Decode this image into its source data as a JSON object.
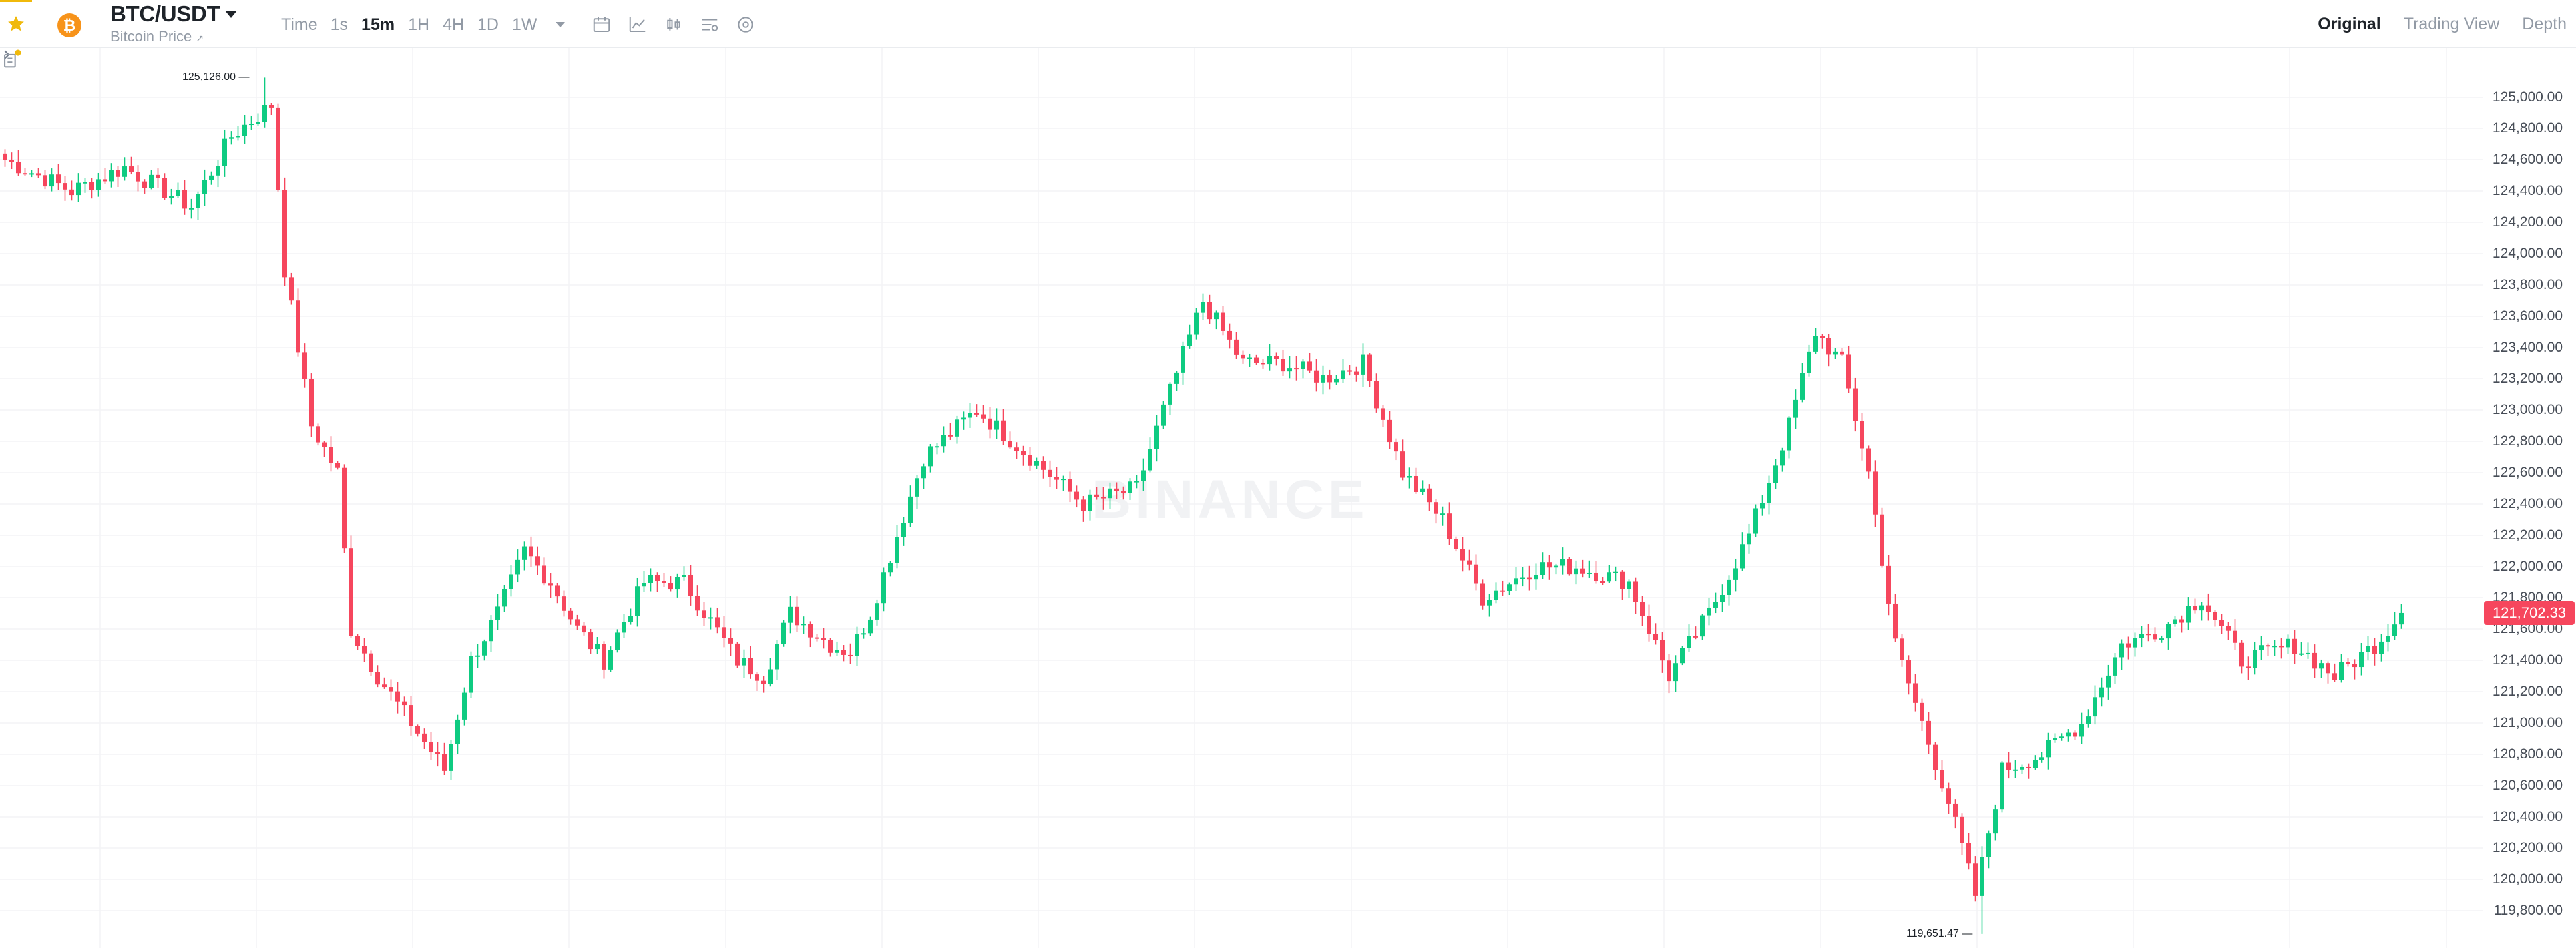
{
  "header": {
    "symbol": "BTC/USDT",
    "subtitle": "Bitcoin Price",
    "subtitle_icon": "external-link-icon",
    "coin_glyph": "₿",
    "favorite_icon": "star-icon",
    "intervals": [
      "Time",
      "1s",
      "15m",
      "1H",
      "4H",
      "1D",
      "1W"
    ],
    "active_interval": "15m",
    "tools": [
      "calendar-icon",
      "line-chart-icon",
      "candle-type-icon",
      "indicator-settings-icon",
      "settings-icon"
    ],
    "views": [
      "Original",
      "Trading View",
      "Depth"
    ],
    "active_view": "Original"
  },
  "colors": {
    "up": "#0ecb81",
    "down": "#f6465d",
    "accent": "#f0b90b",
    "coin": "#f7931a",
    "grid": "#f3f4f6",
    "axis_text": "#474d57"
  },
  "watermark": "BINANCE",
  "chart_data": {
    "type": "candlestick",
    "price_axis": {
      "labels": [
        "125,000.00",
        "124,800.00",
        "124,600.00",
        "124,400.00",
        "124,200.00",
        "124,000.00",
        "123,800.00",
        "123,600.00",
        "123,400.00",
        "123,200.00",
        "123,000.00",
        "122,800.00",
        "122,600.00",
        "122,400.00",
        "122,200.00",
        "122,000.00",
        "121,800.00",
        "121,600.00",
        "121,400.00",
        "121,200.00",
        "121,000.00",
        "120,800.00",
        "120,600.00",
        "120,400.00",
        "120,200.00",
        "120,000.00",
        "119,800.00"
      ],
      "min": 119700,
      "max": 125250
    },
    "last_price": 121702.33,
    "last_price_label": "121,702.33",
    "high": 125126.0,
    "high_label": "125,126.00",
    "low": 119651.47,
    "low_label": "119,651.47",
    "anchors": [
      [
        0,
        124600
      ],
      [
        10,
        124400
      ],
      [
        18,
        124550
      ],
      [
        28,
        124300
      ],
      [
        34,
        124750
      ],
      [
        40,
        124950
      ],
      [
        42,
        123900
      ],
      [
        46,
        122900
      ],
      [
        50,
        122600
      ],
      [
        52,
        121600
      ],
      [
        56,
        121300
      ],
      [
        61,
        121000
      ],
      [
        66,
        120700
      ],
      [
        70,
        121400
      ],
      [
        74,
        121700
      ],
      [
        78,
        122100
      ],
      [
        82,
        121900
      ],
      [
        86,
        121600
      ],
      [
        90,
        121400
      ],
      [
        96,
        121900
      ],
      [
        102,
        121900
      ],
      [
        110,
        121400
      ],
      [
        114,
        121300
      ],
      [
        118,
        121700
      ],
      [
        124,
        121500
      ],
      [
        127,
        121450
      ],
      [
        130,
        121700
      ],
      [
        138,
        122700
      ],
      [
        146,
        123000
      ],
      [
        154,
        122700
      ],
      [
        162,
        122400
      ],
      [
        170,
        122500
      ],
      [
        174,
        123000
      ],
      [
        180,
        123700
      ],
      [
        186,
        123300
      ],
      [
        192,
        123300
      ],
      [
        198,
        123200
      ],
      [
        204,
        123300
      ],
      [
        210,
        122600
      ],
      [
        216,
        122300
      ],
      [
        222,
        121800
      ],
      [
        230,
        122000
      ],
      [
        236,
        122000
      ],
      [
        244,
        121900
      ],
      [
        250,
        121300
      ],
      [
        256,
        121700
      ],
      [
        262,
        122200
      ],
      [
        268,
        122900
      ],
      [
        272,
        123500
      ],
      [
        276,
        123300
      ],
      [
        280,
        122600
      ],
      [
        284,
        121500
      ],
      [
        288,
        121000
      ],
      [
        292,
        120500
      ],
      [
        296,
        119900
      ],
      [
        300,
        120700
      ],
      [
        306,
        120800
      ],
      [
        312,
        121000
      ],
      [
        318,
        121500
      ],
      [
        324,
        121600
      ],
      [
        330,
        121800
      ],
      [
        336,
        121400
      ],
      [
        344,
        121500
      ],
      [
        350,
        121300
      ],
      [
        356,
        121500
      ],
      [
        360,
        121700
      ]
    ]
  },
  "bottom_icon": "order-history-icon"
}
